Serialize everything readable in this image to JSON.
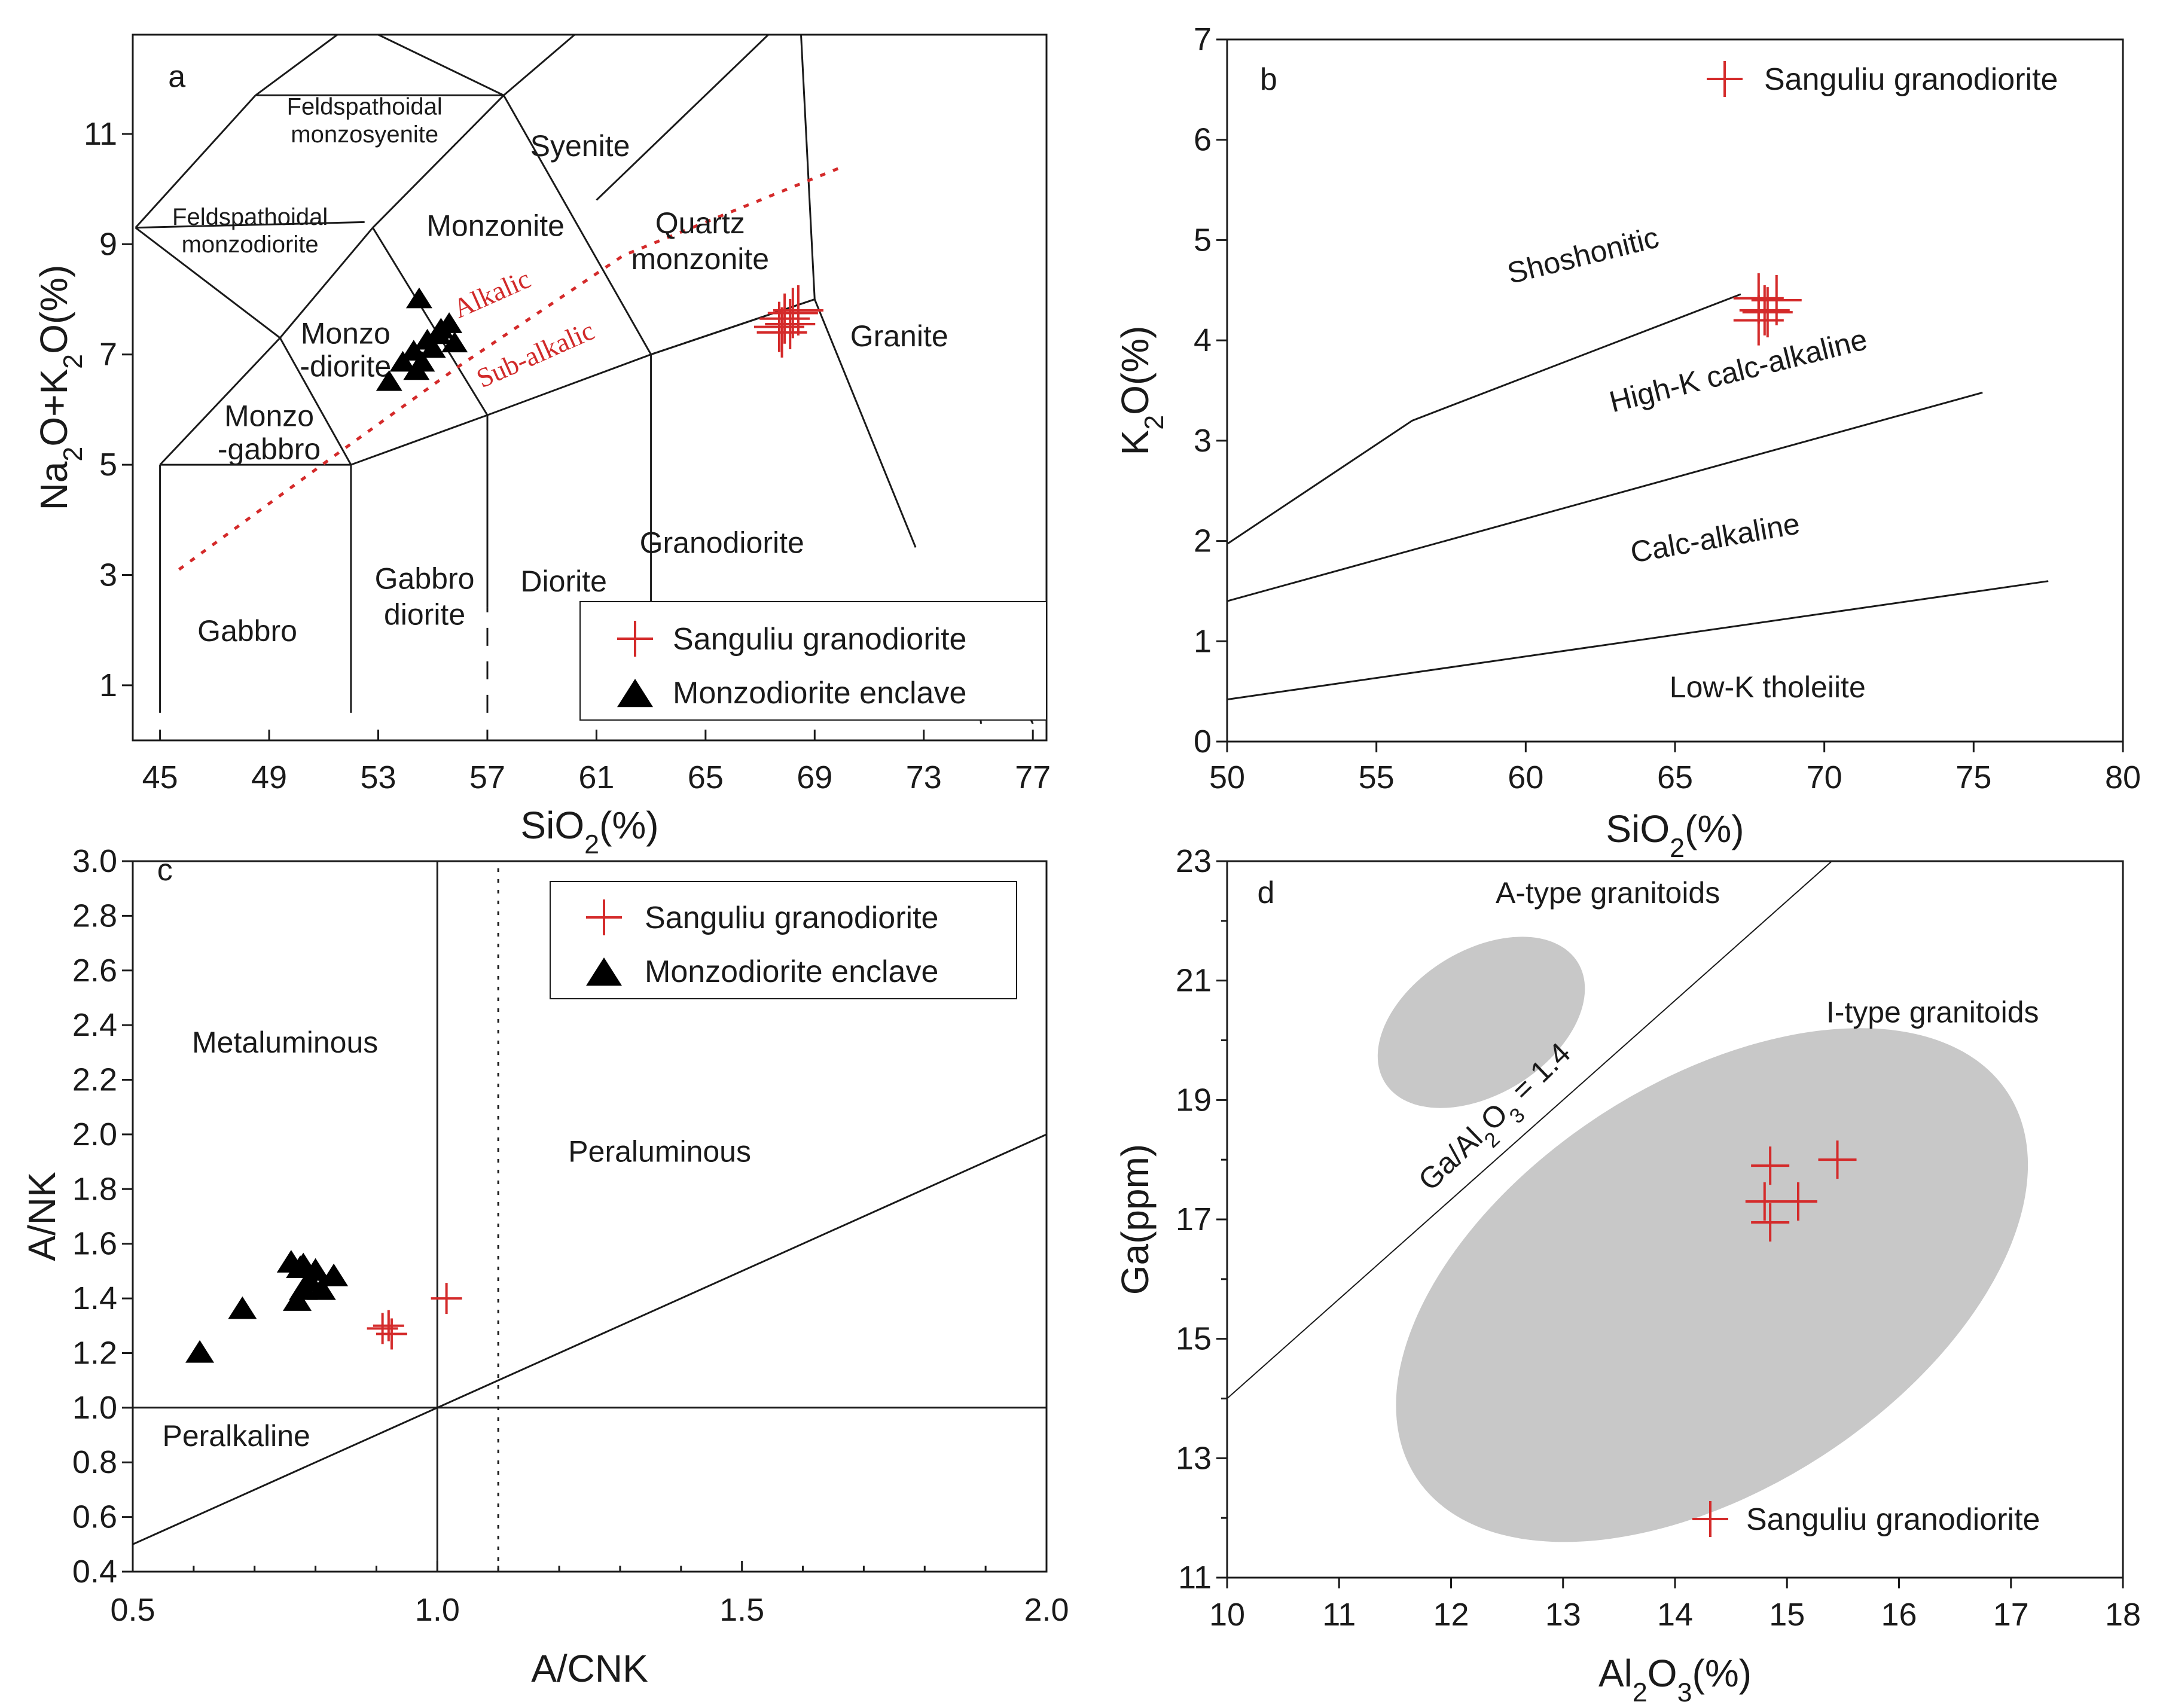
{
  "colors": {
    "axis": "#1a1a1a",
    "sanguliu": "#d42a2a",
    "enclave": "#000000",
    "field_fill": "#c8c8c8"
  },
  "chart_data": [
    {
      "panel": "a",
      "type": "scatter",
      "xlabel": "SiO2(%)",
      "ylabel": "Na2O+K2O(%)",
      "xlim": [
        44,
        77.5
      ],
      "ylim": [
        0,
        12.8
      ],
      "xticks": [
        "45",
        "49",
        "53",
        "57",
        "61",
        "65",
        "69",
        "73",
        "77"
      ],
      "yticks": [
        "1",
        "3",
        "5",
        "7",
        "9",
        "11"
      ],
      "fields": [
        "Feldspathoidal monzosyenite",
        "Syenite",
        "Feldspathoidal monzodiorite",
        "Monzonite",
        "Quartz monzonite",
        "Monzo -diorite",
        "Granite",
        "Monzo -gabbro",
        "Diorite",
        "Granodiorite",
        "Gabbro diorite",
        "Gabbro"
      ],
      "field_lines": [
        "Feldspathoidal|monzosyenite",
        "Feldspathoidal|monzodiorite",
        "Monzo|-diorite",
        "Monzo|-gabbro",
        "Gabbro|diorite",
        "Quartz|monzonite"
      ],
      "divider_labels": [
        "Alkalic",
        "Sub-alkalic"
      ],
      "series": [
        {
          "name": "Sanguliu granodiorite",
          "marker": "plus",
          "points": [
            [
              67.9,
              7.65
            ],
            [
              68.2,
              7.75
            ],
            [
              67.7,
              7.5
            ],
            [
              68.4,
              7.8
            ],
            [
              67.8,
              7.4
            ],
            [
              68.1,
              7.55
            ]
          ]
        },
        {
          "name": "Monzodiorite enclave",
          "marker": "triangle",
          "points": [
            [
              54.5,
              8.0
            ],
            [
              55.6,
              7.55
            ],
            [
              55.2,
              7.35
            ],
            [
              54.8,
              7.25
            ],
            [
              55.8,
              7.2
            ],
            [
              54.3,
              7.05
            ],
            [
              55.0,
              7.1
            ],
            [
              54.6,
              6.85
            ],
            [
              53.9,
              6.85
            ],
            [
              54.4,
              6.7
            ],
            [
              53.4,
              6.5
            ],
            [
              55.3,
              7.45
            ]
          ]
        }
      ]
    },
    {
      "panel": "b",
      "type": "scatter",
      "xlabel": "SiO2(%)",
      "ylabel": "K2O(%)",
      "xlim": [
        50,
        80
      ],
      "ylim": [
        0,
        7
      ],
      "xticks": [
        "50",
        "55",
        "60",
        "65",
        "70",
        "75",
        "80"
      ],
      "yticks": [
        "0",
        "1",
        "2",
        "3",
        "4",
        "5",
        "6",
        "7"
      ],
      "fields": [
        "Shoshonitic",
        "High-K calc-alkaline",
        "Calc-alkaline",
        "Low-K tholeiite"
      ],
      "series": [
        {
          "name": "Sanguliu granodiorite",
          "marker": "plus",
          "points": [
            [
              67.8,
              4.42
            ],
            [
              68.4,
              4.4
            ],
            [
              68.0,
              4.3
            ],
            [
              67.8,
              4.2
            ],
            [
              68.1,
              4.28
            ]
          ]
        }
      ]
    },
    {
      "panel": "c",
      "type": "scatter",
      "xlabel": "A/CNK",
      "ylabel": "A/NK",
      "xlim": [
        0.5,
        2.0
      ],
      "ylim": [
        0.4,
        3.0
      ],
      "xticks": [
        "0.5",
        "1.0",
        "1.5",
        "2.0"
      ],
      "yticks": [
        "0.4",
        "0.6",
        "0.8",
        "1.0",
        "1.2",
        "1.4",
        "1.6",
        "1.8",
        "2.0",
        "2.2",
        "2.4",
        "2.6",
        "2.8",
        "3.0"
      ],
      "fields": [
        "Metaluminous",
        "Peraluminous",
        "Peralkaline"
      ],
      "series": [
        {
          "name": "Sanguliu granodiorite",
          "marker": "plus",
          "points": [
            [
              0.91,
              1.29
            ],
            [
              0.925,
              1.27
            ],
            [
              0.92,
              1.3
            ],
            [
              1.015,
              1.4
            ]
          ]
        },
        {
          "name": "Monzodiorite enclave",
          "marker": "triangle",
          "points": [
            [
              0.61,
              1.2
            ],
            [
              0.68,
              1.36
            ],
            [
              0.76,
              1.53
            ],
            [
              0.78,
              1.52
            ],
            [
              0.8,
              1.5
            ],
            [
              0.83,
              1.48
            ],
            [
              0.79,
              1.46
            ],
            [
              0.81,
              1.43
            ],
            [
              0.78,
              1.43
            ],
            [
              0.77,
              1.39
            ],
            [
              0.775,
              1.51
            ]
          ]
        }
      ]
    },
    {
      "panel": "d",
      "type": "scatter",
      "xlabel": "Al2O3(%)",
      "ylabel": "Ga(ppm)",
      "xlim": [
        10,
        18
      ],
      "ylim": [
        11,
        23
      ],
      "xticks": [
        "10",
        "11",
        "12",
        "13",
        "14",
        "15",
        "16",
        "17",
        "18"
      ],
      "yticks": [
        "11",
        "13",
        "15",
        "17",
        "19",
        "21",
        "23"
      ],
      "fields": [
        "A-type granitoids",
        "I-type granitoids"
      ],
      "line_label": "Ga/Al2O3 = 1.4",
      "series": [
        {
          "name": "Sanguliu granodiorite",
          "marker": "plus",
          "points": [
            [
              14.85,
              17.9
            ],
            [
              15.45,
              18.0
            ],
            [
              14.8,
              17.3
            ],
            [
              15.1,
              17.3
            ],
            [
              14.85,
              16.95
            ]
          ]
        }
      ]
    }
  ]
}
